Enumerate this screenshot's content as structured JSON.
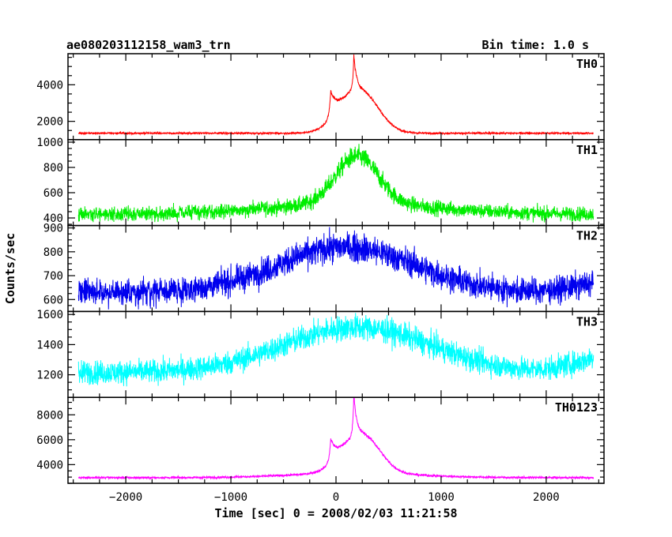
{
  "header": {
    "title": "ae080203112158_wam3_trn",
    "bin_time": "Bin time: 1.0 s"
  },
  "chart_data": {
    "type": "line",
    "xlabel": "Time [sec] 0 = 2008/02/03 11:21:58",
    "ylabel": "Counts/sec",
    "xlim": [
      -2550,
      2550
    ],
    "x_ticks": [
      -2000,
      -1000,
      0,
      1000,
      2000
    ],
    "x_tick_labels": [
      "−2000",
      "−1000",
      "0",
      "1000",
      "2000"
    ],
    "panels": [
      {
        "name": "TH0",
        "color": "#ff0000",
        "ylim": [
          1000,
          5700
        ],
        "y_ticks": [
          2000,
          4000
        ],
        "y_tick_labels": [
          "2000",
          "4000"
        ],
        "baseline": 1350,
        "noise": 35,
        "features": [
          {
            "type": "gauss",
            "x": 180,
            "sigma": 170,
            "amp": 2000
          },
          {
            "type": "spike",
            "x": -50,
            "amp": 1500,
            "rise": 15,
            "decay": 60
          },
          {
            "type": "spike",
            "x": 170,
            "amp": 1900,
            "rise": 10,
            "decay": 25
          },
          {
            "type": "bump",
            "x": 330,
            "sigma": 150,
            "amp": 600
          }
        ]
      },
      {
        "name": "TH1",
        "color": "#00ee00",
        "ylim": [
          340,
          1020
        ],
        "y_ticks": [
          400,
          600,
          800,
          1000
        ],
        "y_tick_labels": [
          "400",
          "600",
          "800",
          "1000"
        ],
        "baseline": 430,
        "noise": 40,
        "features": [
          {
            "type": "gauss",
            "x": 180,
            "sigma": 800,
            "amp": 80
          },
          {
            "type": "gauss",
            "x": 200,
            "sigma": 200,
            "amp": 380
          }
        ]
      },
      {
        "name": "TH2",
        "color": "#0000ee",
        "ylim": [
          550,
          910
        ],
        "y_ticks": [
          600,
          700,
          800,
          900
        ],
        "y_tick_labels": [
          "600",
          "700",
          "800",
          "900"
        ],
        "baseline": 630,
        "noise": 38,
        "features": [
          {
            "type": "gauss",
            "x": 100,
            "sigma": 650,
            "amp": 190
          },
          {
            "type": "edge_up",
            "x": 2450,
            "amp": 40
          }
        ]
      },
      {
        "name": "TH3",
        "color": "#00ffff",
        "ylim": [
          1050,
          1620
        ],
        "y_ticks": [
          1200,
          1400,
          1600
        ],
        "y_tick_labels": [
          "1200",
          "1400",
          "1600"
        ],
        "baseline": 1215,
        "noise": 55,
        "features": [
          {
            "type": "gauss",
            "x": 200,
            "sigma": 700,
            "amp": 300
          },
          {
            "type": "edge_up",
            "x": 2450,
            "amp": 100
          }
        ]
      },
      {
        "name": "TH0123",
        "color": "#ff00ff",
        "ylim": [
          2500,
          9400
        ],
        "y_ticks": [
          4000,
          6000,
          8000
        ],
        "y_tick_labels": [
          "4000",
          "6000",
          "8000"
        ],
        "baseline": 2950,
        "noise": 60,
        "features": [
          {
            "type": "gauss",
            "x": 180,
            "sigma": 600,
            "amp": 350
          },
          {
            "type": "gauss",
            "x": 200,
            "sigma": 170,
            "amp": 2500
          },
          {
            "type": "spike",
            "x": -50,
            "amp": 1900,
            "rise": 15,
            "decay": 60
          },
          {
            "type": "spike",
            "x": 170,
            "amp": 3500,
            "rise": 10,
            "decay": 25
          },
          {
            "type": "bump",
            "x": 330,
            "sigma": 150,
            "amp": 900
          }
        ]
      }
    ]
  }
}
